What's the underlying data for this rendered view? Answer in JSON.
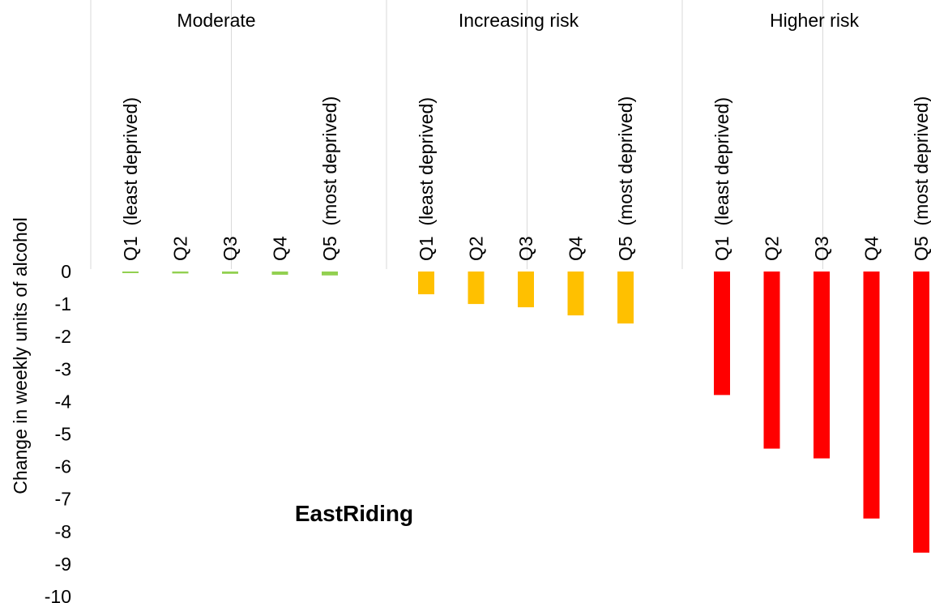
{
  "chart_data": {
    "type": "bar",
    "annotation": "EastRiding",
    "ylabel": "Change in weekly units of alcohol",
    "ylim": [
      -10,
      0
    ],
    "yticks": [
      0,
      -1,
      -2,
      -3,
      -4,
      -5,
      -6,
      -7,
      -8,
      -9,
      -10
    ],
    "grid": false,
    "legend": "none",
    "categories": [
      "Q1  (least deprived)",
      "Q2",
      "Q3",
      "Q4",
      "Q5  (most deprived)"
    ],
    "groups": [
      {
        "name": "Moderate",
        "color": "#92D050",
        "values": [
          -0.05,
          -0.06,
          -0.07,
          -0.1,
          -0.12
        ]
      },
      {
        "name": "Increasing risk",
        "color": "#FFC000",
        "values": [
          -0.7,
          -1.0,
          -1.1,
          -1.35,
          -1.6
        ]
      },
      {
        "name": "Higher risk",
        "color": "#FF0000",
        "values": [
          -3.8,
          -5.45,
          -5.75,
          -7.6,
          -8.65
        ]
      }
    ]
  }
}
